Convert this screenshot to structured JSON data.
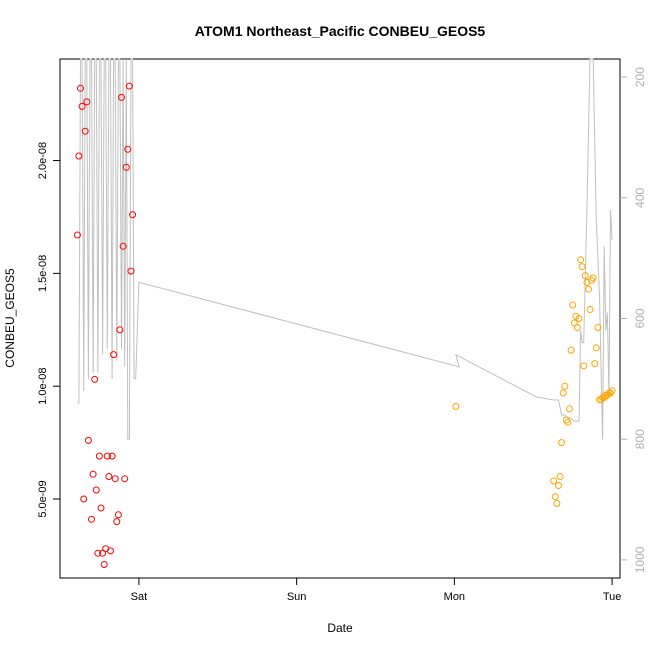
{
  "chart_data": {
    "type": "scatter",
    "title": "ATOM1 Northeast_Pacific CONBEU_GEOS5",
    "xlabel": "Date",
    "ylabel": "CONBEU_GEOS5",
    "x_ticks": [
      {
        "value": 1.0,
        "label": "Sat"
      },
      {
        "value": 2.0,
        "label": "Sun"
      },
      {
        "value": 3.0,
        "label": "Mon"
      },
      {
        "value": 4.0,
        "label": "Tue"
      }
    ],
    "xlim": [
      0.5,
      4.05
    ],
    "ylim": [
      1.5e-09,
      2.45e-08
    ],
    "y_ticks": [
      {
        "value": 5e-09,
        "label": "5.0e-09"
      },
      {
        "value": 1e-08,
        "label": "1.0e-08"
      },
      {
        "value": 1.5e-08,
        "label": "1.5e-08"
      },
      {
        "value": 2e-08,
        "label": "2.0e-08"
      }
    ],
    "y2lim": [
      1030,
      170
    ],
    "y2_ticks": [
      {
        "value": 200,
        "label": "200"
      },
      {
        "value": 400,
        "label": "400"
      },
      {
        "value": 600,
        "label": "600"
      },
      {
        "value": 800,
        "label": "800"
      },
      {
        "value": 1000,
        "label": "1000"
      }
    ],
    "grid": false,
    "series": [
      {
        "color": "#ff0000",
        "x": [
          0.61,
          0.62,
          0.63,
          0.64,
          0.65,
          0.66,
          0.67,
          0.68,
          0.7,
          0.71,
          0.72,
          0.73,
          0.74,
          0.75,
          0.76,
          0.77,
          0.78,
          0.79,
          0.8,
          0.81,
          0.82,
          0.83,
          0.84,
          0.85,
          0.86,
          0.87,
          0.88,
          0.89,
          0.9,
          0.91,
          0.92,
          0.93,
          0.94,
          0.95,
          0.96,
          0.97,
          0.98
        ],
        "y": [
          1.67e-08,
          2.02e-08,
          2.32e-08,
          2.24e-08,
          5e-09,
          2.13e-08,
          2.26e-08,
          7.6e-09,
          4.1e-09,
          6.1e-09,
          1.03e-08,
          5.4e-09,
          2.6e-09,
          6.9e-09,
          4.6e-09,
          2.6e-09,
          2.1e-09,
          2.8e-09,
          6.9e-09,
          6e-09,
          2.7e-09,
          6.9e-09,
          1.14e-08,
          5.9e-09,
          4e-09,
          4.3e-09,
          1.25e-08,
          2.28e-08,
          1.62e-08,
          5.9e-09,
          1.97e-08,
          2.05e-08,
          2.33e-08,
          1.51e-08,
          1.76e-08,
          1.1e-09,
          1.2e-09
        ]
      },
      {
        "color": "#ffa500",
        "x": [
          3.01,
          3.63,
          3.64,
          3.65,
          3.66,
          3.67,
          3.68,
          3.69,
          3.7,
          3.71,
          3.72,
          3.73,
          3.74,
          3.75,
          3.76,
          3.77,
          3.78,
          3.79,
          3.8,
          3.81,
          3.82,
          3.83,
          3.84,
          3.85,
          3.86,
          3.87,
          3.88,
          3.89,
          3.9,
          3.91,
          3.92,
          3.93,
          3.94,
          3.95,
          3.96,
          3.97,
          3.98,
          3.99,
          4.0
        ],
        "y": [
          9.1e-09,
          5.8e-09,
          5.1e-09,
          4.8e-09,
          5.6e-09,
          6e-09,
          7.5e-09,
          9.7e-09,
          1e-08,
          8.5e-09,
          8.4e-09,
          9e-09,
          1.16e-08,
          1.36e-08,
          1.28e-08,
          1.31e-08,
          1.26e-08,
          1.3e-08,
          1.56e-08,
          1.53e-08,
          1.09e-08,
          1.49e-08,
          1.46e-08,
          1.43e-08,
          1.34e-08,
          1.47e-08,
          1.48e-08,
          1.1e-08,
          1.17e-08,
          1.26e-08,
          9.4e-09,
          9.4e-09,
          9.5e-09,
          9.5e-09,
          9.6e-09,
          9.6e-09,
          9.7e-09,
          9.7e-09,
          9.8e-09
        ]
      }
    ],
    "pressure_line": {
      "color": "#c0c0c0",
      "x": [
        0.61,
        0.62,
        0.63,
        0.64,
        0.65,
        0.66,
        0.67,
        0.68,
        0.69,
        0.7,
        0.71,
        0.72,
        0.73,
        0.74,
        0.75,
        0.76,
        0.77,
        0.78,
        0.79,
        0.8,
        0.81,
        0.82,
        0.83,
        0.84,
        0.85,
        0.86,
        0.87,
        0.88,
        0.89,
        0.9,
        0.91,
        0.92,
        0.93,
        0.94,
        0.95,
        0.96,
        0.97,
        0.98,
        1.0,
        3.03,
        3.01,
        3.52,
        3.63,
        3.66,
        3.68,
        3.7,
        3.72,
        3.74,
        3.76,
        3.78,
        3.79,
        3.8,
        3.81,
        3.82,
        3.84,
        3.86,
        3.88,
        3.9,
        3.92,
        3.94,
        3.95,
        3.96,
        3.97,
        3.98,
        3.99,
        4.0
      ],
      "y": [
        740,
        740,
        170,
        170,
        720,
        170,
        170,
        700,
        170,
        170,
        690,
        170,
        170,
        690,
        170,
        170,
        660,
        170,
        170,
        650,
        170,
        170,
        700,
        170,
        170,
        670,
        170,
        170,
        650,
        170,
        680,
        170,
        800,
        800,
        170,
        170,
        700,
        700,
        540,
        680,
        660,
        730,
        735,
        735,
        760,
        760,
        765,
        765,
        770,
        770,
        770,
        620,
        640,
        640,
        420,
        160,
        170,
        440,
        560,
        800,
        480,
        620,
        590,
        730,
        420,
        470
      ]
    }
  }
}
